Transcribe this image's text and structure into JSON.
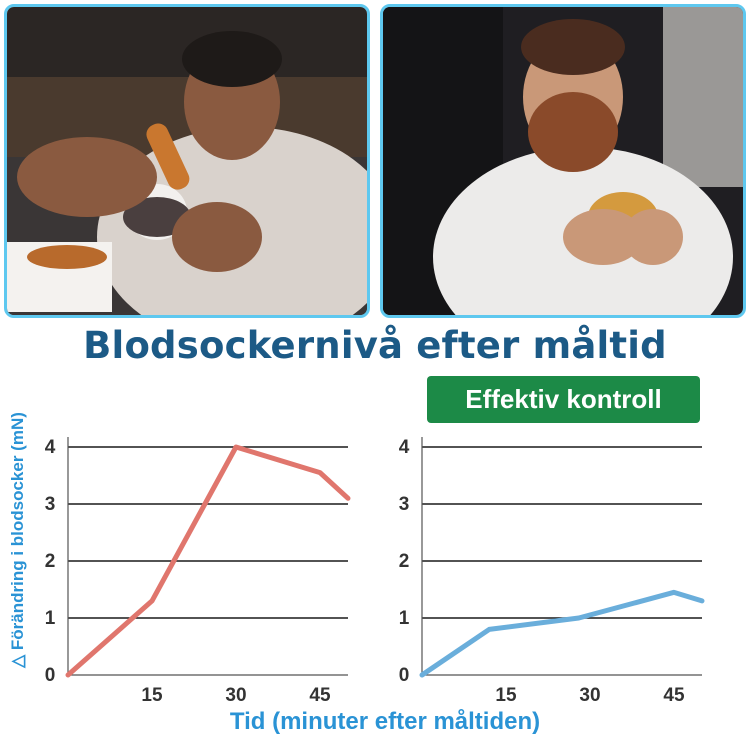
{
  "title": "Blodsockernivå efter måltid",
  "badge": "Effektiv kontroll",
  "ylabel": "△ Förändring i blodsocker (mN)",
  "xlabel": "Tid (minuter efter måltiden)",
  "colors": {
    "title": "#1c5a86",
    "badge": "#1c8a47",
    "axis_label": "#2a93d5",
    "photo_border": "#5ec8ef",
    "series_left": "#e0766d",
    "series_right": "#6aaedb"
  },
  "chart_data": [
    {
      "type": "line",
      "x": [
        0,
        15,
        30,
        45,
        50
      ],
      "series": [
        {
          "values": [
            0,
            1.3,
            4.0,
            3.55,
            3.1
          ]
        }
      ],
      "xticks": [
        0,
        15,
        30,
        45
      ],
      "yticks": [
        0,
        1,
        2,
        3,
        4
      ],
      "xlim": [
        0,
        50
      ],
      "ylim": [
        0,
        4
      ],
      "grid": true
    },
    {
      "type": "line",
      "x": [
        0,
        12,
        28,
        45,
        50
      ],
      "series": [
        {
          "values": [
            0,
            0.8,
            1.0,
            1.45,
            1.3
          ]
        }
      ],
      "xticks": [
        0,
        15,
        30,
        45
      ],
      "yticks": [
        0,
        1,
        2,
        3,
        4
      ],
      "xlim": [
        0,
        50
      ],
      "ylim": [
        0,
        4
      ],
      "grid": true
    }
  ]
}
